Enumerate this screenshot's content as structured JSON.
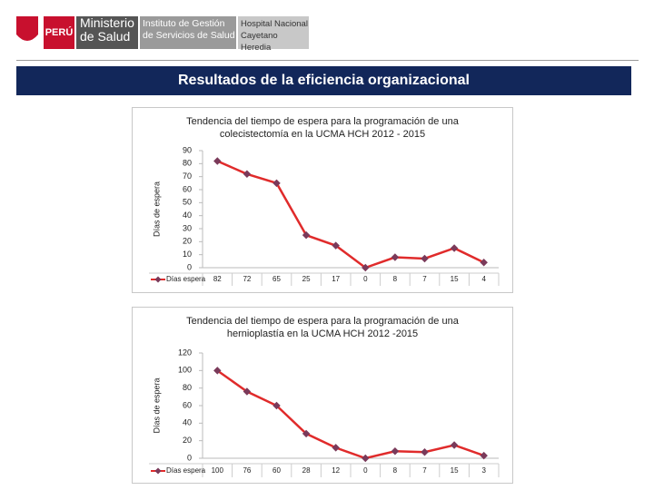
{
  "header": {
    "country": "PERÚ",
    "ministry": "Ministerio de Salud",
    "institute": "Instituto de Gestión de Servicios de Salud",
    "hospital": "Hospital Nacional Cayetano Heredia"
  },
  "slide_title": "Resultados de la eficiencia organizacional",
  "chart_data": [
    {
      "type": "line",
      "title": "Tendencia del tiempo de espera para la programación de una colecistectomía en la UCMA HCH 2012 - 2015",
      "y_label": "Días de espera",
      "categories": [
        null,
        null,
        null,
        null,
        null,
        null,
        null,
        null,
        null,
        null
      ],
      "series": [
        {
          "name": "Días espera",
          "color": "#e02b2b",
          "marker_color": "#7a3a5a",
          "values": [
            82,
            72,
            65,
            25,
            17,
            0,
            8,
            7,
            15,
            4
          ]
        }
      ],
      "ylim": [
        0,
        90
      ],
      "yticks": [
        0,
        10,
        20,
        30,
        40,
        50,
        60,
        70,
        80,
        90
      ],
      "grid": false
    },
    {
      "type": "line",
      "title": "Tendencia del tiempo de espera para la programación de una hernioplastía en la UCMA HCH 2012 -2015",
      "y_label": "Días de espera",
      "categories": [
        null,
        null,
        null,
        null,
        null,
        null,
        null,
        null,
        null,
        null
      ],
      "series": [
        {
          "name": "Días espera",
          "color": "#e02b2b",
          "marker_color": "#7a3a5a",
          "values": [
            100,
            76,
            60,
            28,
            12,
            0,
            8,
            7,
            15,
            3
          ]
        }
      ],
      "ylim": [
        0,
        120
      ],
      "yticks": [
        0,
        20,
        40,
        60,
        80,
        100,
        120
      ],
      "grid": false
    }
  ]
}
